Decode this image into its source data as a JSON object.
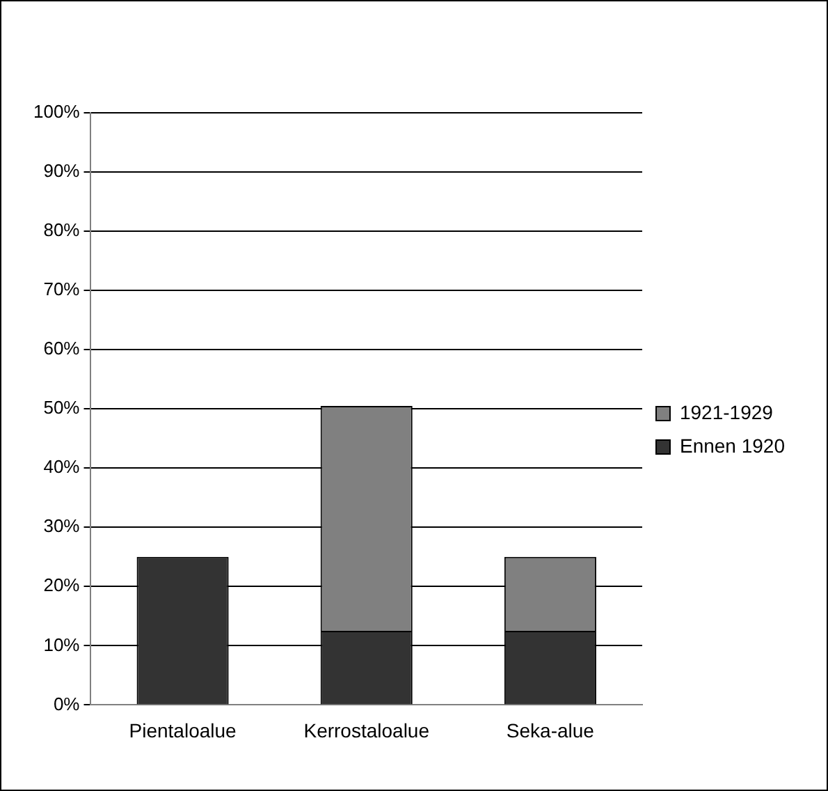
{
  "chart_data": {
    "type": "bar",
    "stacked": true,
    "categories": [
      "Pientaloalue",
      "Kerrostaloalue",
      "Seka-alue"
    ],
    "series": [
      {
        "name": "Ennen 1920",
        "color": "#333333",
        "values": [
          25,
          12.5,
          12.5
        ]
      },
      {
        "name": "1921-1929",
        "color": "#808080",
        "values": [
          0,
          38,
          12.5
        ]
      }
    ],
    "ylim": [
      0,
      100
    ],
    "yticks": [
      {
        "value": 0,
        "label": "0%"
      },
      {
        "value": 10,
        "label": "10%"
      },
      {
        "value": 20,
        "label": "20%"
      },
      {
        "value": 30,
        "label": "30%"
      },
      {
        "value": 40,
        "label": "40%"
      },
      {
        "value": 50,
        "label": "50%"
      },
      {
        "value": 60,
        "label": "60%"
      },
      {
        "value": 70,
        "label": "70%"
      },
      {
        "value": 80,
        "label": "80%"
      },
      {
        "value": 90,
        "label": "90%"
      },
      {
        "value": 100,
        "label": "100%"
      }
    ],
    "grid": "y",
    "legend": "right"
  }
}
